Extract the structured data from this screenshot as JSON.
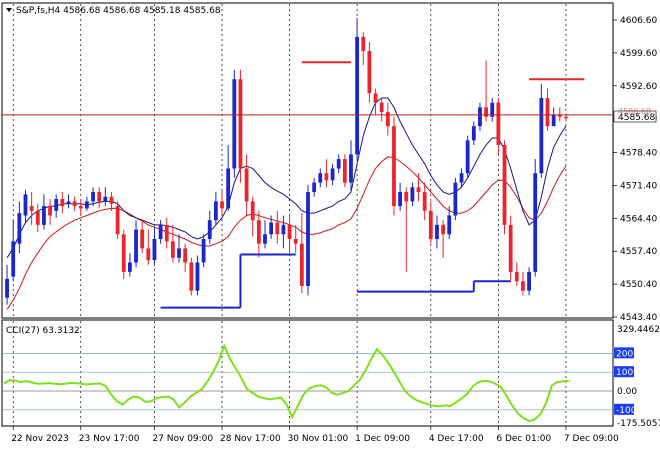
{
  "header": {
    "symbol_line": "S&P,fs,H4  4586.68 4586.68 4585.18 4585.68",
    "menu_icon": "triangle-down-icon"
  },
  "current_price": {
    "label": "4585.68",
    "hidden_label": "4586.68"
  },
  "indicator": {
    "label": "CCI(27) 63.3132",
    "max_label": "329.4462",
    "min_label": "-175.5057",
    "levels": [
      "200",
      "100",
      "0.00",
      "-100"
    ]
  },
  "colors": {
    "bull": "#1a27c9",
    "bear": "#e8262d",
    "ma_fast": "#101a8c",
    "ma_slow": "#d01818",
    "cci": "#7ee01c",
    "level_line": "#1a3cff",
    "grid": "#000000",
    "hline": "#c41c1c",
    "price_box_bg": "#ffffff"
  },
  "chart_data": [
    {
      "type": "candlestick",
      "title": "S&P,fs,H4",
      "ylim": [
        4543.4,
        4606.6
      ],
      "y_ticks": [
        "4606.60",
        "4599.60",
        "4592.60",
        "4585.60",
        "4578.40",
        "4571.40",
        "4564.40",
        "4557.40",
        "4550.40",
        "4543.40"
      ],
      "x_ticks": [
        "22 Nov 2023",
        "23 Nov 17:00",
        "27 Nov 09:00",
        "28 Nov 17:00",
        "30 Nov 01:00",
        "1 Dec 09:00",
        "4 Dec 17:00",
        "6 Dec 01:00",
        "7 Dec 09:00"
      ],
      "horizontal_line": 4586.4,
      "candles": [
        [
          4547.5,
          4551.5,
          4546,
          4554.5
        ],
        [
          4552,
          4559.5,
          4551,
          4564
        ],
        [
          4559,
          4565.5,
          4557,
          4568
        ],
        [
          4565,
          4569.5,
          4563.5,
          4570.5
        ],
        [
          4567,
          4566,
          4563,
          4570
        ],
        [
          4566,
          4563,
          4561.5,
          4567.5
        ],
        [
          4563,
          4567,
          4562,
          4569.5
        ],
        [
          4567,
          4565,
          4563,
          4568.5
        ],
        [
          4566,
          4568.5,
          4564.5,
          4569.5
        ],
        [
          4568.5,
          4567,
          4565.5,
          4570
        ],
        [
          4567.5,
          4568,
          4566.5,
          4569.5
        ],
        [
          4568,
          4567,
          4566,
          4569
        ],
        [
          4567,
          4566.5,
          4565,
          4568.5
        ],
        [
          4566.5,
          4568,
          4566,
          4569
        ],
        [
          4568,
          4570,
          4567,
          4571
        ],
        [
          4570,
          4568,
          4566.5,
          4571
        ],
        [
          4568,
          4569,
          4567,
          4571
        ],
        [
          4569,
          4567.5,
          4566,
          4570
        ],
        [
          4567,
          4561,
          4560,
          4568
        ],
        [
          4561,
          4553,
          4551.5,
          4562
        ],
        [
          4553,
          4555,
          4552,
          4557
        ],
        [
          4555,
          4562,
          4554,
          4564
        ],
        [
          4562,
          4558,
          4557,
          4564
        ],
        [
          4558,
          4555.5,
          4554.5,
          4562
        ],
        [
          4555.5,
          4560,
          4554.5,
          4562.5
        ],
        [
          4560,
          4563,
          4559,
          4564
        ],
        [
          4563,
          4559.5,
          4558,
          4564.5
        ],
        [
          4559.5,
          4556,
          4555,
          4563
        ],
        [
          4556,
          4558,
          4555,
          4561
        ],
        [
          4558,
          4555,
          4553,
          4559
        ],
        [
          4555,
          4549,
          4548,
          4556
        ],
        [
          4549,
          4555,
          4548,
          4556.5
        ],
        [
          4555,
          4560,
          4554,
          4561
        ],
        [
          4560,
          4564,
          4559,
          4566
        ],
        [
          4564,
          4568,
          4563,
          4570
        ],
        [
          4568,
          4566.5,
          4565,
          4570.5
        ],
        [
          4566.5,
          4575,
          4566,
          4580
        ],
        [
          4575,
          4594,
          4573,
          4596
        ],
        [
          4594,
          4575,
          4572,
          4596
        ],
        [
          4575,
          4568,
          4565,
          4578
        ],
        [
          4568,
          4564,
          4560.5,
          4569
        ],
        [
          4564,
          4559,
          4556,
          4566
        ],
        [
          4559,
          4561,
          4558,
          4564
        ],
        [
          4561,
          4563.5,
          4560,
          4565
        ],
        [
          4563.5,
          4561,
          4559,
          4566
        ],
        [
          4561,
          4563,
          4558,
          4565
        ],
        [
          4563,
          4560,
          4557,
          4565
        ],
        [
          4560,
          4559,
          4557,
          4563
        ],
        [
          4559,
          4550,
          4548.5,
          4565.5
        ],
        [
          4550,
          4570,
          4548,
          4571.5
        ],
        [
          4570,
          4572,
          4569,
          4573
        ],
        [
          4572,
          4574,
          4571,
          4575
        ],
        [
          4574,
          4572.5,
          4571,
          4577
        ],
        [
          4572.5,
          4575,
          4571.5,
          4576
        ],
        [
          4575,
          4577,
          4574,
          4578
        ],
        [
          4577,
          4572,
          4571,
          4578
        ],
        [
          4572,
          4578,
          4570,
          4581
        ],
        [
          4578,
          4603,
          4577,
          4607
        ],
        [
          4603,
          4600,
          4597,
          4604
        ],
        [
          4600,
          4591,
          4589,
          4602
        ],
        [
          4591,
          4589,
          4586.5,
          4592
        ],
        [
          4589,
          4587,
          4585,
          4590
        ],
        [
          4587,
          4584,
          4582,
          4589
        ],
        [
          4584,
          4567,
          4565,
          4586
        ],
        [
          4567,
          4570,
          4566,
          4572
        ],
        [
          4570,
          4568,
          4553,
          4571
        ],
        [
          4568,
          4571,
          4567,
          4572
        ],
        [
          4571,
          4570,
          4568,
          4574
        ],
        [
          4570,
          4566,
          4564,
          4572
        ],
        [
          4566,
          4560,
          4559,
          4568
        ],
        [
          4560,
          4563,
          4558,
          4565
        ],
        [
          4563,
          4561,
          4556,
          4564
        ],
        [
          4561,
          4565,
          4560,
          4567
        ],
        [
          4565,
          4572,
          4564,
          4573
        ],
        [
          4572,
          4574,
          4571,
          4575
        ],
        [
          4574,
          4581,
          4573,
          4582
        ],
        [
          4581,
          4584,
          4580,
          4585
        ],
        [
          4584,
          4588,
          4583,
          4589
        ],
        [
          4588,
          4586,
          4585,
          4598
        ],
        [
          4586,
          4589,
          4585,
          4590
        ],
        [
          4589,
          4580,
          4578,
          4590
        ],
        [
          4580,
          4563,
          4561,
          4581
        ],
        [
          4563,
          4553,
          4551,
          4565
        ],
        [
          4553,
          4551,
          4550,
          4555
        ],
        [
          4551,
          4549,
          4548,
          4553
        ],
        [
          4549,
          4553,
          4548,
          4554
        ],
        [
          4553,
          4574,
          4552,
          4577
        ],
        [
          4574,
          4590,
          4573,
          4593
        ],
        [
          4590,
          4584,
          4583,
          4592
        ],
        [
          4584,
          4586.5,
          4584,
          4588
        ],
        [
          4586.5,
          4586,
          4585,
          4588
        ],
        [
          4586,
          4585.7,
          4585,
          4586.7
        ]
      ],
      "ma_fast": [
        4556,
        4558,
        4561,
        4563.5,
        4565,
        4566,
        4566.5,
        4567,
        4567,
        4567.5,
        4567.5,
        4567.5,
        4567.5,
        4567.3,
        4567.5,
        4567.8,
        4568,
        4568,
        4567.5,
        4566,
        4565,
        4564.5,
        4564,
        4563.5,
        4563,
        4563,
        4562.8,
        4562.5,
        4562,
        4561.5,
        4560.5,
        4560,
        4560.5,
        4561.5,
        4563,
        4564.5,
        4567,
        4572,
        4575,
        4575.5,
        4575,
        4573.5,
        4572,
        4571,
        4570.2,
        4569.5,
        4568.5,
        4567.5,
        4566,
        4565.5,
        4565.5,
        4566,
        4566.5,
        4567,
        4568,
        4568.5,
        4570,
        4576,
        4582,
        4586,
        4589,
        4590,
        4590,
        4588,
        4585,
        4582.5,
        4580,
        4578,
        4576,
        4573.5,
        4571.5,
        4570,
        4569.5,
        4570,
        4571,
        4573,
        4575.5,
        4578,
        4580,
        4581.5,
        4581.5,
        4579,
        4575,
        4570.5,
        4566,
        4563,
        4564,
        4569,
        4575,
        4579.5,
        4582,
        4584
      ],
      "ma_slow": [
        4545,
        4547,
        4549.5,
        4552.5,
        4555,
        4557,
        4559,
        4560.5,
        4561.5,
        4562.5,
        4563.3,
        4564,
        4564.5,
        4565,
        4565.5,
        4566,
        4566.3,
        4566.5,
        4566.5,
        4566,
        4565.3,
        4564.5,
        4563.8,
        4563,
        4562.5,
        4562,
        4561.5,
        4561,
        4560.5,
        4560,
        4559.3,
        4558.8,
        4558.5,
        4558.5,
        4559,
        4559.5,
        4560.5,
        4562.5,
        4564,
        4565,
        4565.3,
        4565,
        4564.5,
        4564.2,
        4563.8,
        4563.5,
        4563,
        4562.5,
        4561.5,
        4561,
        4561,
        4561.3,
        4561.8,
        4562.2,
        4563,
        4563.5,
        4564.3,
        4566.5,
        4569.5,
        4572.5,
        4575,
        4576.5,
        4577.5,
        4577.3,
        4576.5,
        4575.5,
        4574.3,
        4573,
        4571.5,
        4570,
        4568.5,
        4567,
        4566,
        4565.5,
        4565.5,
        4566,
        4567,
        4568.5,
        4570,
        4571.5,
        4572.5,
        4572.5,
        4571,
        4569,
        4566.5,
        4564.5,
        4564,
        4565.5,
        4568,
        4571,
        4573.5,
        4575.5
      ],
      "step_line": {
        "segments": [
          {
            "from": 25,
            "to": 38,
            "value": 4545.4
          },
          {
            "from": 38,
            "to": 47,
            "value": 4556.7
          },
          {
            "from": 57,
            "to": 76,
            "value": 4548.8
          },
          {
            "from": 76,
            "to": 82,
            "value": 4551.0
          }
        ],
        "ramps": [
          [
            38,
            4545.4,
            4556.7
          ],
          [
            76,
            4548.8,
            4551.0
          ]
        ]
      },
      "resistance_line": {
        "segments": [
          {
            "from": 48,
            "to": 56,
            "value": 4597.6
          },
          {
            "from": 85,
            "to": 94,
            "value": 4594.0
          }
        ]
      }
    },
    {
      "type": "line",
      "title": "CCI(27) 63.3132",
      "ylim": [
        -175.5057,
        329.4462
      ],
      "levels": [
        200,
        100,
        0,
        -100
      ],
      "values": [
        40,
        58,
        55,
        48,
        52,
        45,
        38,
        40,
        42,
        38,
        36,
        40,
        43,
        41,
        37,
        35,
        38,
        40,
        26,
        -20,
        -55,
        -72,
        -45,
        -30,
        -35,
        -58,
        -55,
        -38,
        -32,
        -30,
        -45,
        -88,
        -60,
        -30,
        -10,
        10,
        50,
        100,
        160,
        240,
        170,
        120,
        70,
        10,
        -10,
        -30,
        -38,
        -45,
        -40,
        -35,
        -70,
        -140,
        -80,
        -20,
        15,
        25,
        30,
        20,
        -10,
        -20,
        -10,
        0,
        30,
        60,
        110,
        170,
        222,
        190,
        150,
        100,
        50,
        0,
        -30,
        -48,
        -60,
        -70,
        -78,
        -82,
        -76,
        -80,
        -60,
        -40,
        -15,
        25,
        48,
        55,
        50,
        38,
        20,
        -30,
        -80,
        -120,
        -145,
        -160,
        -150,
        -120,
        -60,
        30,
        48,
        52,
        55
      ],
      "xlim": [
        0,
        100
      ]
    }
  ]
}
